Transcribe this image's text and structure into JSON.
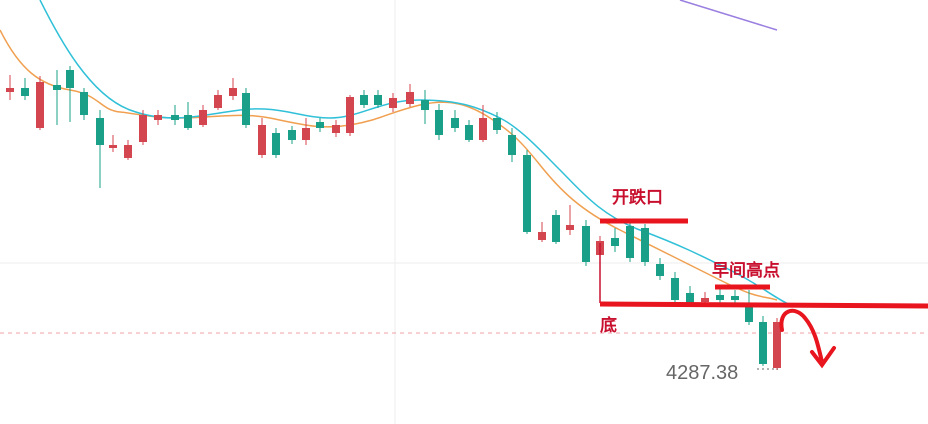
{
  "annotations": {
    "gap": "开跌口",
    "morning_high": "早间高点",
    "bottom": "底"
  },
  "price_label": "4287.38"
}
